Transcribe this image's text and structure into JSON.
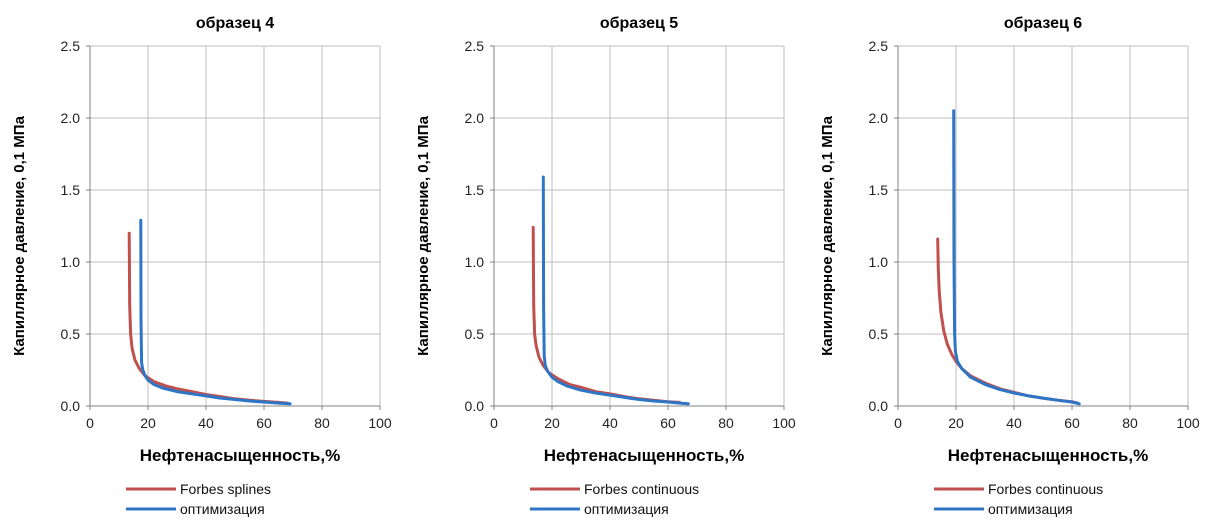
{
  "chart_data": [
    {
      "type": "line",
      "title": "образец 4",
      "xlabel": "Нефтенасыщенность,%",
      "ylabel": "Капиллярное давление, 0,1 МПа",
      "xlim": [
        0,
        100
      ],
      "ylim": [
        0,
        2.5
      ],
      "xticks": [
        "0",
        "20",
        "40",
        "60",
        "80",
        "100"
      ],
      "yticks": [
        "0.0",
        "0.5",
        "1.0",
        "1.5",
        "2.0",
        "2.5"
      ],
      "grid": true,
      "legend": "bottom-left",
      "series": [
        {
          "name": "Forbes splines",
          "color": "#c0504d",
          "x": [
            13.5,
            13.7,
            14.0,
            14.5,
            15.5,
            17,
            19,
            22,
            26,
            30,
            35,
            40,
            45,
            50,
            55,
            60,
            65,
            68
          ],
          "y": [
            1.2,
            0.7,
            0.5,
            0.4,
            0.32,
            0.26,
            0.21,
            0.17,
            0.14,
            0.12,
            0.1,
            0.08,
            0.065,
            0.05,
            0.04,
            0.032,
            0.025,
            0.02
          ]
        },
        {
          "name": "оптимизация",
          "color": "#2e75c6",
          "x": [
            17.5,
            17.6,
            17.8,
            18.2,
            19,
            20,
            22,
            25,
            30,
            35,
            40,
            45,
            50,
            55,
            60,
            65,
            69
          ],
          "y": [
            1.29,
            0.6,
            0.3,
            0.25,
            0.21,
            0.18,
            0.15,
            0.125,
            0.1,
            0.085,
            0.07,
            0.055,
            0.045,
            0.035,
            0.028,
            0.02,
            0.015
          ]
        }
      ]
    },
    {
      "type": "line",
      "title": "образец 5",
      "xlabel": "Нефтенасыщенность,%",
      "ylabel": "Капиллярное давление, 0,1 МПа",
      "xlim": [
        0,
        100
      ],
      "ylim": [
        0,
        2.5
      ],
      "xticks": [
        "0",
        "20",
        "40",
        "60",
        "80",
        "100"
      ],
      "yticks": [
        "0.0",
        "0.5",
        "1.0",
        "1.5",
        "2.0",
        "2.5"
      ],
      "grid": true,
      "legend": "bottom-left",
      "series": [
        {
          "name": "Forbes continuous",
          "color": "#c0504d",
          "x": [
            13.5,
            13.7,
            14.0,
            14.5,
            15.5,
            17,
            19,
            22,
            26,
            30,
            35,
            40,
            45,
            50,
            55,
            60,
            64
          ],
          "y": [
            1.24,
            0.7,
            0.5,
            0.42,
            0.34,
            0.28,
            0.23,
            0.19,
            0.15,
            0.13,
            0.1,
            0.085,
            0.065,
            0.05,
            0.04,
            0.03,
            0.025
          ]
        },
        {
          "name": "оптимизация",
          "color": "#2e75c6",
          "x": [
            17.0,
            17.1,
            17.3,
            17.7,
            18.5,
            20,
            22,
            25,
            30,
            35,
            40,
            45,
            50,
            55,
            60,
            64,
            67
          ],
          "y": [
            1.59,
            0.7,
            0.35,
            0.28,
            0.24,
            0.2,
            0.17,
            0.14,
            0.11,
            0.09,
            0.075,
            0.06,
            0.045,
            0.035,
            0.028,
            0.02,
            0.015
          ]
        }
      ]
    },
    {
      "type": "line",
      "title": "образец 6",
      "xlabel": "Нефтенасыщенность,%",
      "ylabel": "Капиллярное давление, 0,1 МПа",
      "xlim": [
        0,
        100
      ],
      "ylim": [
        0,
        2.5
      ],
      "xticks": [
        "0",
        "20",
        "40",
        "60",
        "80",
        "100"
      ],
      "yticks": [
        "0.0",
        "0.5",
        "1.0",
        "1.5",
        "2.0",
        "2.5"
      ],
      "grid": true,
      "legend": "bottom-left",
      "series": [
        {
          "name": "Forbes continuous",
          "color": "#c0504d",
          "x": [
            13.7,
            13.9,
            14.2,
            14.8,
            15.8,
            17,
            18.5,
            20,
            22,
            25,
            30,
            35,
            40,
            45,
            50,
            55,
            60,
            62
          ],
          "y": [
            1.16,
            0.95,
            0.8,
            0.65,
            0.52,
            0.43,
            0.36,
            0.31,
            0.26,
            0.21,
            0.16,
            0.12,
            0.095,
            0.07,
            0.055,
            0.04,
            0.03,
            0.02
          ]
        },
        {
          "name": "оптимизация",
          "color": "#2e75c6",
          "x": [
            19.2,
            19.3,
            19.5,
            19.8,
            20.5,
            22,
            25,
            30,
            35,
            40,
            45,
            50,
            55,
            60,
            62.5
          ],
          "y": [
            2.05,
            1.0,
            0.5,
            0.38,
            0.31,
            0.26,
            0.2,
            0.15,
            0.115,
            0.09,
            0.07,
            0.055,
            0.04,
            0.028,
            0.015
          ]
        }
      ]
    }
  ]
}
